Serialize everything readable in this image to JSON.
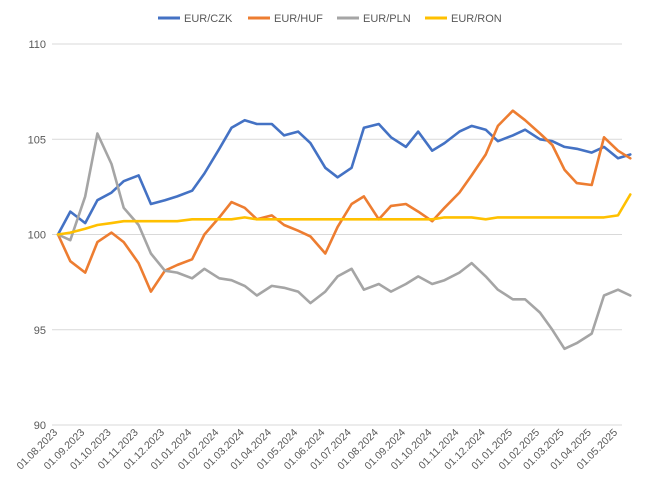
{
  "chart_data": {
    "type": "line",
    "title": "",
    "xlabel": "",
    "ylabel": "",
    "ylim": [
      90,
      110
    ],
    "yticks": [
      90,
      95,
      100,
      105,
      110
    ],
    "grid": "horizontal",
    "legend_position": "top",
    "x_tick_labels": [
      "01.08.2023",
      "01.09.2023",
      "01.10.2023",
      "01.11.2023",
      "01.12.2023",
      "01.01.2024",
      "01.02.2024",
      "01.03.2024",
      "01.04.2024",
      "01.05.2024",
      "01.06.2024",
      "01.07.2024",
      "01.08.2024",
      "01.09.2024",
      "01.10.2024",
      "01.11.2024",
      "01.12.2024",
      "01.01.2025",
      "01.02.2025",
      "01.03.2025",
      "01.04.2025",
      "01.05.2025"
    ],
    "x": [
      "01.08.2023",
      "15.08.2023",
      "01.09.2023",
      "15.09.2023",
      "01.10.2023",
      "15.10.2023",
      "01.11.2023",
      "15.11.2023",
      "01.12.2023",
      "15.12.2023",
      "01.01.2024",
      "15.01.2024",
      "01.02.2024",
      "15.02.2024",
      "01.03.2024",
      "15.03.2024",
      "01.04.2024",
      "15.04.2024",
      "01.05.2024",
      "15.05.2024",
      "01.06.2024",
      "15.06.2024",
      "01.07.2024",
      "15.07.2024",
      "01.08.2024",
      "15.08.2024",
      "01.09.2024",
      "15.09.2024",
      "01.10.2024",
      "15.10.2024",
      "01.11.2024",
      "15.11.2024",
      "01.12.2024",
      "15.12.2024",
      "01.01.2025",
      "15.01.2025",
      "01.02.2025",
      "15.02.2025",
      "01.03.2025",
      "15.03.2025",
      "01.04.2025",
      "15.04.2025",
      "01.05.2025",
      "15.05.2025"
    ],
    "series": [
      {
        "name": "EUR/CZK",
        "color": "#4472C4",
        "values": [
          100.0,
          101.2,
          100.6,
          101.8,
          102.2,
          102.8,
          103.1,
          101.6,
          101.8,
          102.0,
          102.3,
          103.2,
          104.5,
          105.6,
          106.0,
          105.8,
          105.8,
          105.2,
          105.4,
          104.8,
          103.5,
          103.0,
          103.5,
          105.6,
          105.8,
          105.1,
          104.6,
          105.4,
          104.4,
          104.8,
          105.4,
          105.7,
          105.5,
          104.9,
          105.2,
          105.5,
          105.0,
          104.9,
          104.6,
          104.5,
          104.3,
          104.6,
          104.0,
          104.2
        ]
      },
      {
        "name": "EUR/HUF",
        "color": "#ED7D31",
        "values": [
          100.0,
          98.6,
          98.0,
          99.6,
          100.1,
          99.6,
          98.5,
          97.0,
          98.1,
          98.4,
          98.7,
          100.0,
          100.9,
          101.7,
          101.4,
          100.8,
          101.0,
          100.5,
          100.2,
          99.9,
          99.0,
          100.4,
          101.6,
          102.0,
          100.8,
          101.5,
          101.6,
          101.2,
          100.7,
          101.4,
          102.2,
          103.1,
          104.2,
          105.7,
          106.5,
          106.0,
          105.3,
          104.7,
          103.4,
          102.7,
          102.6,
          105.1,
          104.4,
          104.0
        ]
      },
      {
        "name": "EUR/PLN",
        "color": "#A5A5A5",
        "values": [
          100.0,
          99.7,
          102.0,
          105.3,
          103.7,
          101.4,
          100.5,
          99.0,
          98.1,
          98.0,
          97.7,
          98.2,
          97.7,
          97.6,
          97.3,
          96.8,
          97.3,
          97.2,
          97.0,
          96.4,
          97.0,
          97.8,
          98.2,
          97.1,
          97.4,
          97.0,
          97.4,
          97.8,
          97.4,
          97.6,
          98.0,
          98.5,
          97.8,
          97.1,
          96.6,
          96.6,
          95.9,
          95.0,
          94.0,
          94.3,
          94.8,
          96.8,
          97.1,
          96.8
        ]
      },
      {
        "name": "EUR/RON",
        "color": "#FFC000",
        "values": [
          100.0,
          100.1,
          100.3,
          100.5,
          100.6,
          100.7,
          100.7,
          100.7,
          100.7,
          100.7,
          100.8,
          100.8,
          100.8,
          100.8,
          100.9,
          100.8,
          100.8,
          100.8,
          100.8,
          100.8,
          100.8,
          100.8,
          100.8,
          100.8,
          100.8,
          100.8,
          100.8,
          100.8,
          100.8,
          100.9,
          100.9,
          100.9,
          100.8,
          100.9,
          100.9,
          100.9,
          100.9,
          100.9,
          100.9,
          100.9,
          100.9,
          100.9,
          101.0,
          102.1
        ]
      }
    ]
  }
}
